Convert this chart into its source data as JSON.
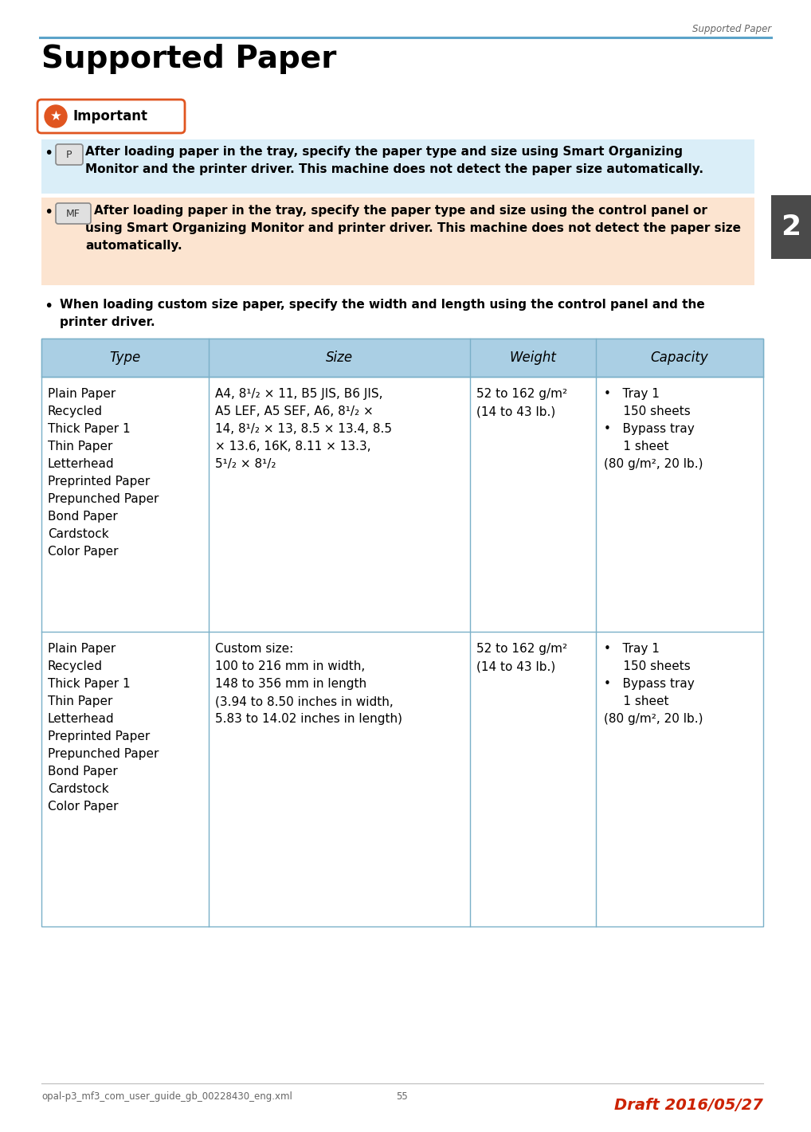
{
  "page_title": "Supported Paper",
  "header_text": "Supported Paper",
  "top_rule_color": "#5ba3c9",
  "bg_color": "#ffffff",
  "table_header_bg": "#aacfe4",
  "bullet_p_bg": "#daeef8",
  "bullet_mf_bg": "#fce4d0",
  "important_label": "Important",
  "important_border_color": "#e05520",
  "important_star_bg": "#e05520",
  "bullet_p_line1": "After loading paper in the tray, specify the paper type and size using Smart Organizing",
  "bullet_p_line2": "Monitor and the printer driver. This machine does not detect the paper size automatically.",
  "bullet_mf_line1": "After loading paper in the tray, specify the paper type and size using the control panel or",
  "bullet_mf_line2": "using Smart Organizing Monitor and printer driver. This machine does not detect the paper size",
  "bullet_mf_line3": "automatically.",
  "bullet3_line1": "When loading custom size paper, specify the width and length using the control panel and the",
  "bullet3_line2": "printer driver.",
  "table_headers": [
    "Type",
    "Size",
    "Weight",
    "Capacity"
  ],
  "row_types": [
    "Plain Paper",
    "Recycled",
    "Thick Paper 1",
    "Thin Paper",
    "Letterhead",
    "Preprinted Paper",
    "Prepunched Paper",
    "Bond Paper",
    "Cardstock",
    "Color Paper"
  ],
  "row1_size": [
    "A4, 8¹/₂ × 11, B5 JIS, B6 JIS,",
    "A5 LEF, A5 SEF, A6, 8¹/₂ ×",
    "14, 8¹/₂ × 13, 8.5 × 13.4, 8.5",
    "× 13.6, 16K, 8.11 × 13.3,",
    "5¹/₂ × 8¹/₂"
  ],
  "row2_size": [
    "Custom size:",
    "100 to 216 mm in width,",
    "148 to 356 mm in length",
    "(3.94 to 8.50 inches in width,",
    "5.83 to 14.02 inches in length)"
  ],
  "weight_line1": "52 to 162 g/m²",
  "weight_line2": "(14 to 43 lb.)",
  "cap_line1": "•   Tray 1",
  "cap_line2": "     150 sheets",
  "cap_line3": "•   Bypass tray",
  "cap_line4": "     1 sheet",
  "cap_line5": "(80 g/m², 20 lb.)",
  "footer_left": "opal-p3_mf3_com_user_guide_gb_00228430_eng.xml",
  "footer_page": "55",
  "footer_draft": "Draft 2016/05/27",
  "sidebar_num": "2",
  "sidebar_bg": "#4a4a4a"
}
